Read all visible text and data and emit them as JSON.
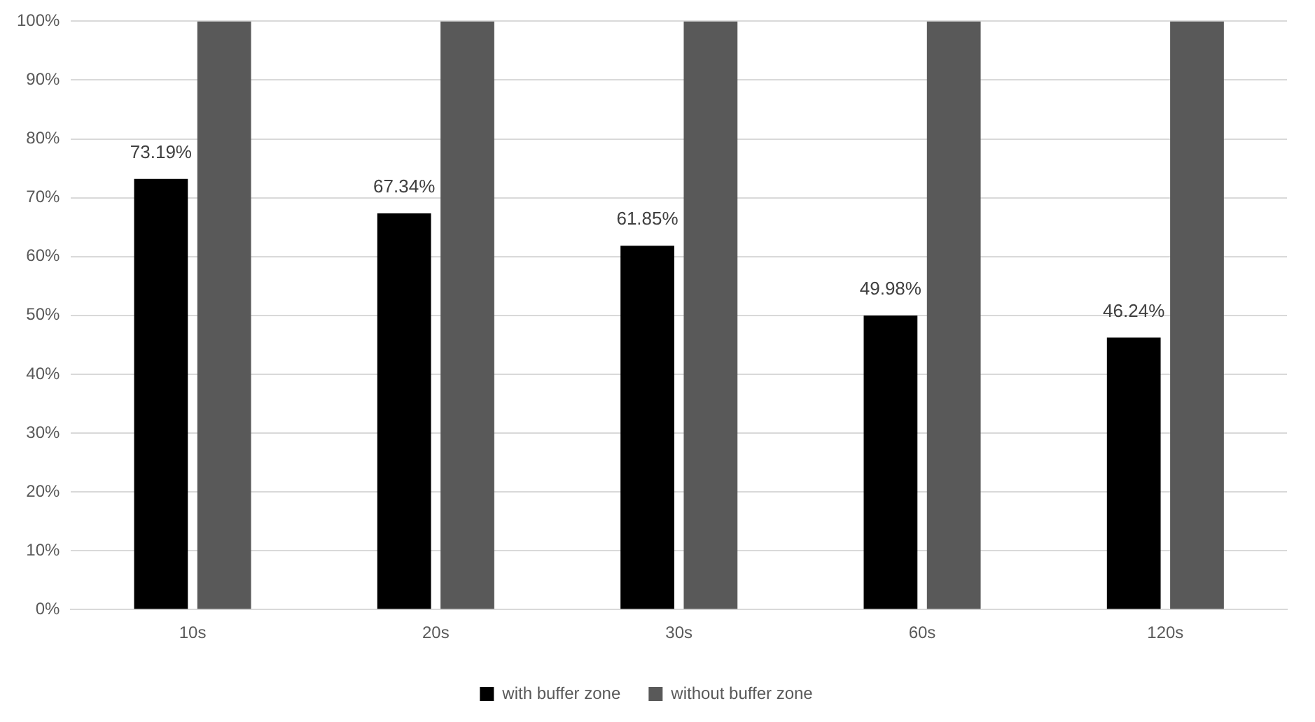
{
  "chart_data": {
    "type": "bar",
    "categories": [
      "10s",
      "20s",
      "30s",
      "60s",
      "120s"
    ],
    "series": [
      {
        "name": "with buffer zone",
        "color": "#000000",
        "values": [
          73.19,
          67.34,
          61.85,
          49.98,
          46.24
        ],
        "value_labels": [
          "73.19%",
          "67.34%",
          "61.85%",
          "49.98%",
          "46.24%"
        ]
      },
      {
        "name": "without buffer zone",
        "color": "#595959",
        "values": [
          100,
          100,
          100,
          100,
          100
        ]
      }
    ],
    "ylim": [
      0,
      100
    ],
    "yticks": [
      {
        "value": 0,
        "label": "0%"
      },
      {
        "value": 10,
        "label": "10%"
      },
      {
        "value": 20,
        "label": "20%"
      },
      {
        "value": 30,
        "label": "30%"
      },
      {
        "value": 40,
        "label": "40%"
      },
      {
        "value": 50,
        "label": "50%"
      },
      {
        "value": 60,
        "label": "60%"
      },
      {
        "value": 70,
        "label": "70%"
      },
      {
        "value": 80,
        "label": "80%"
      },
      {
        "value": 90,
        "label": "90%"
      },
      {
        "value": 100,
        "label": "100%"
      }
    ],
    "grid": "y",
    "legend": "bottom"
  }
}
